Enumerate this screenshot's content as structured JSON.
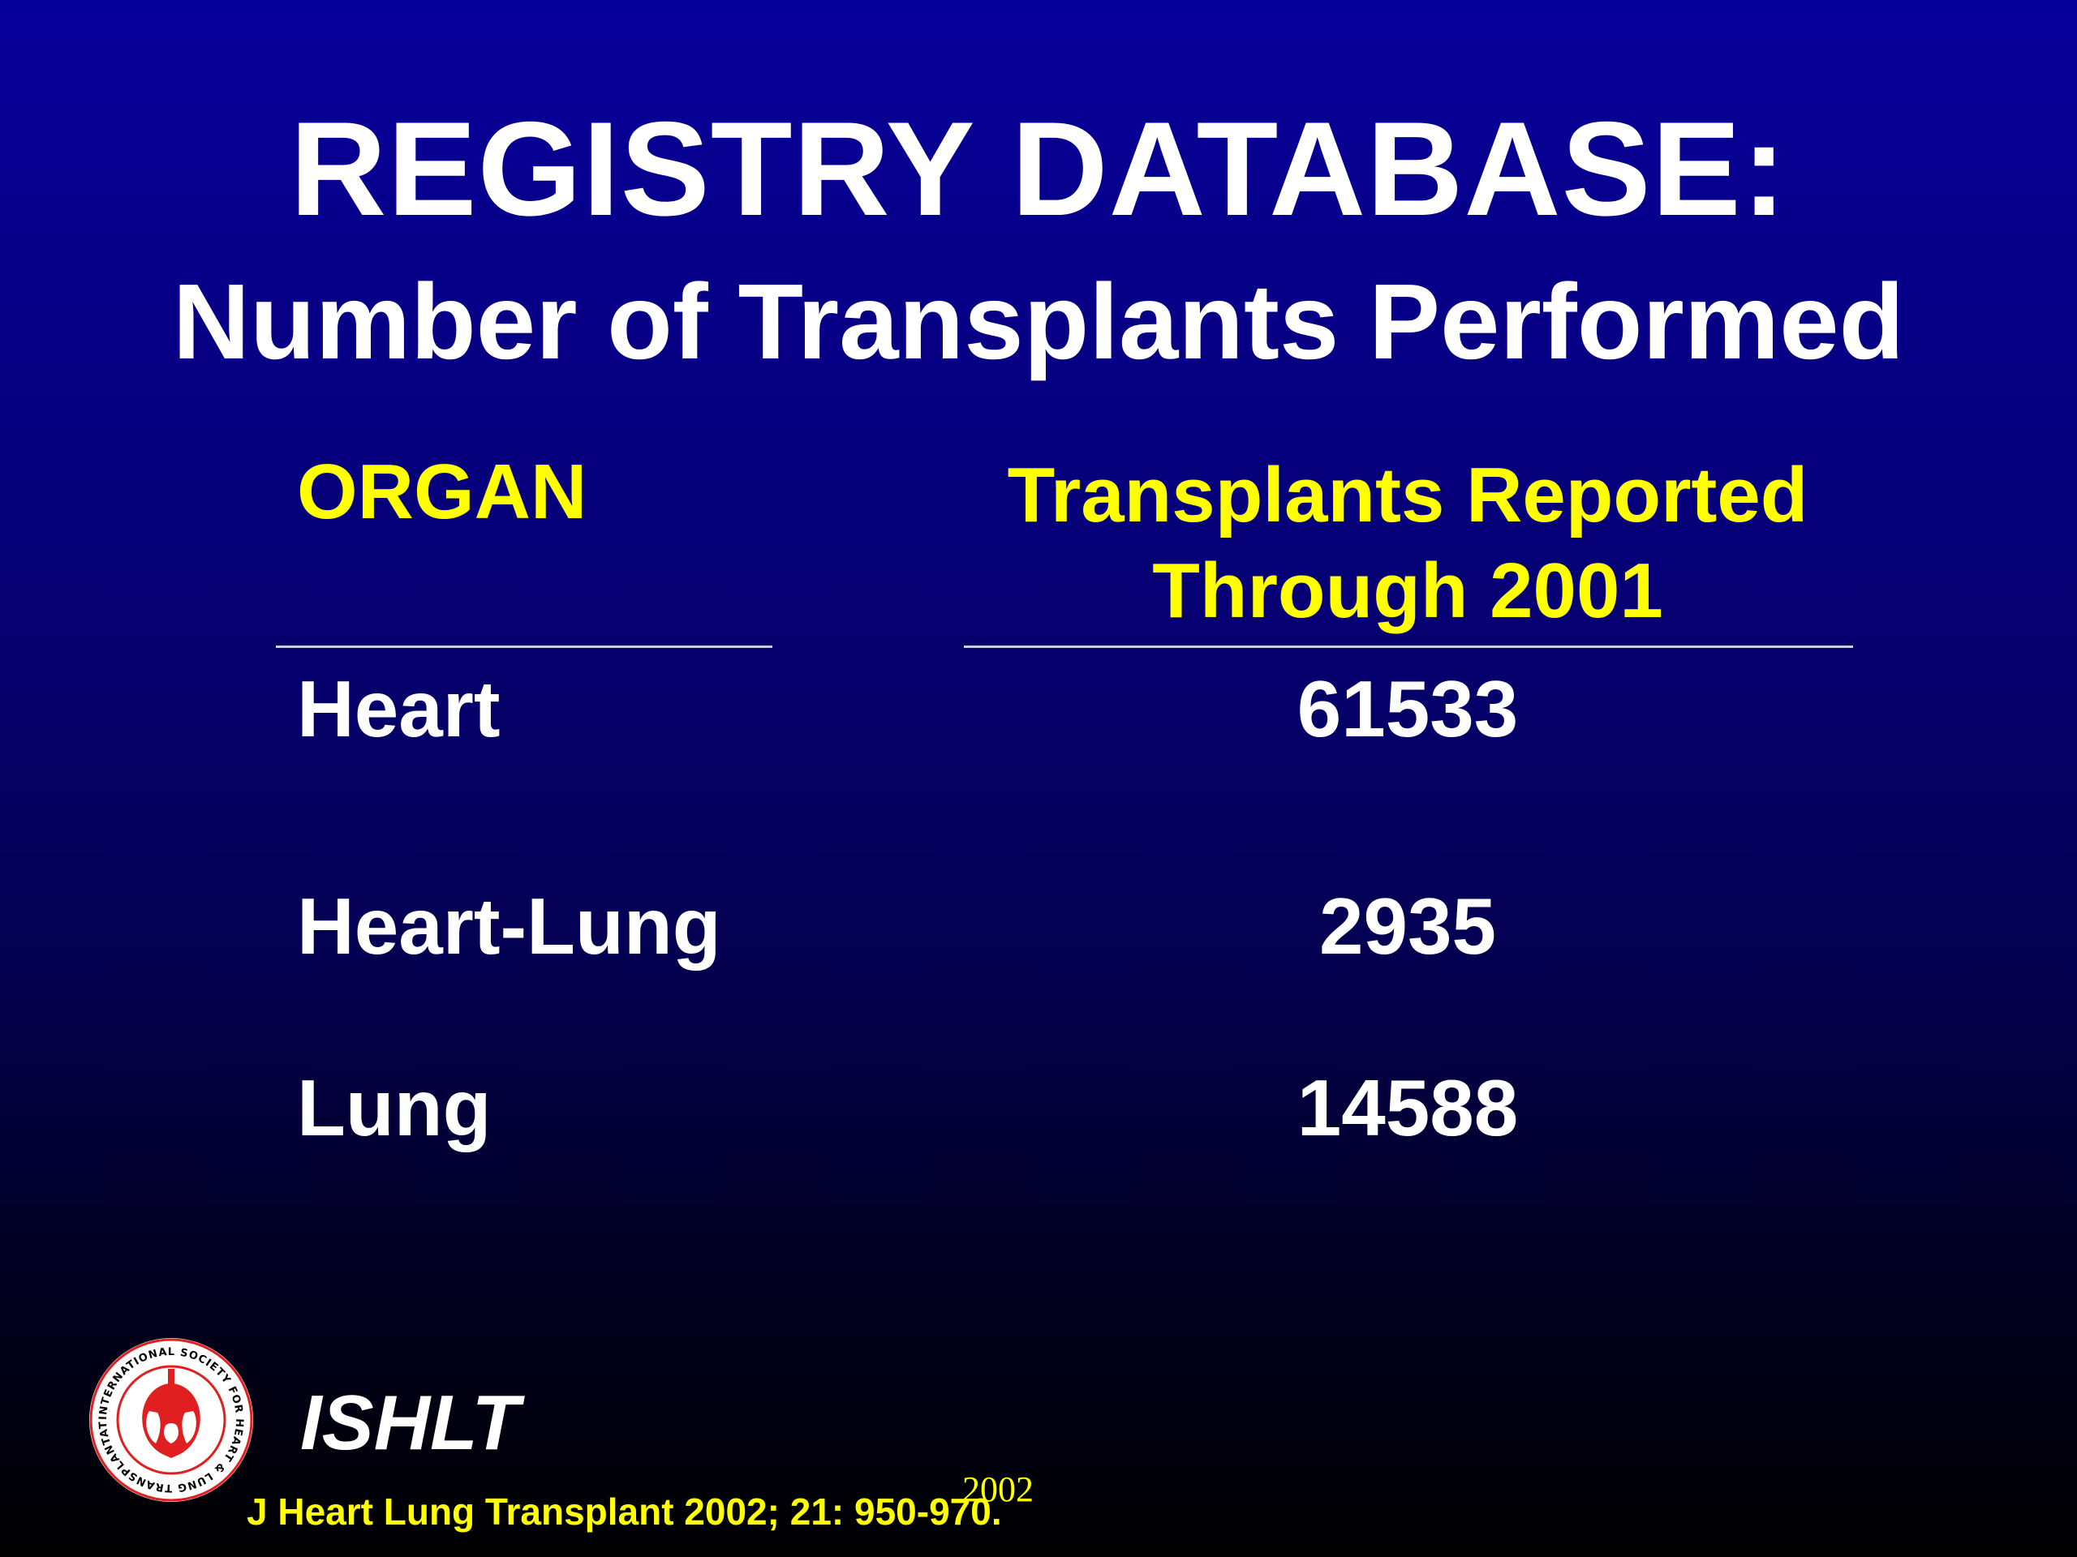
{
  "slide": {
    "title": "REGISTRY DATABASE:",
    "subtitle": "Number of Transplants Performed"
  },
  "table": {
    "headers": {
      "organ": "ORGAN",
      "count_line1": "Transplants Reported",
      "count_line2": "Through 2001"
    },
    "rows": [
      {
        "organ": "Heart",
        "count": "61533"
      },
      {
        "organ": "Heart-Lung",
        "count": "2935"
      },
      {
        "organ": "Lung",
        "count": "14588"
      }
    ]
  },
  "footer": {
    "brand": "ISHLT",
    "citation": "J Heart Lung Transplant 2002; 21: 950-970.",
    "year": "2002",
    "logo_text": "INTERNATIONAL SOCIETY FOR HEART & LUNG TRANSPLANTATION"
  },
  "colors": {
    "background_top": "#08009a",
    "background_bottom": "#000000",
    "header_text": "#ffff00",
    "body_text": "#ffffff",
    "logo_red": "#e02020"
  }
}
